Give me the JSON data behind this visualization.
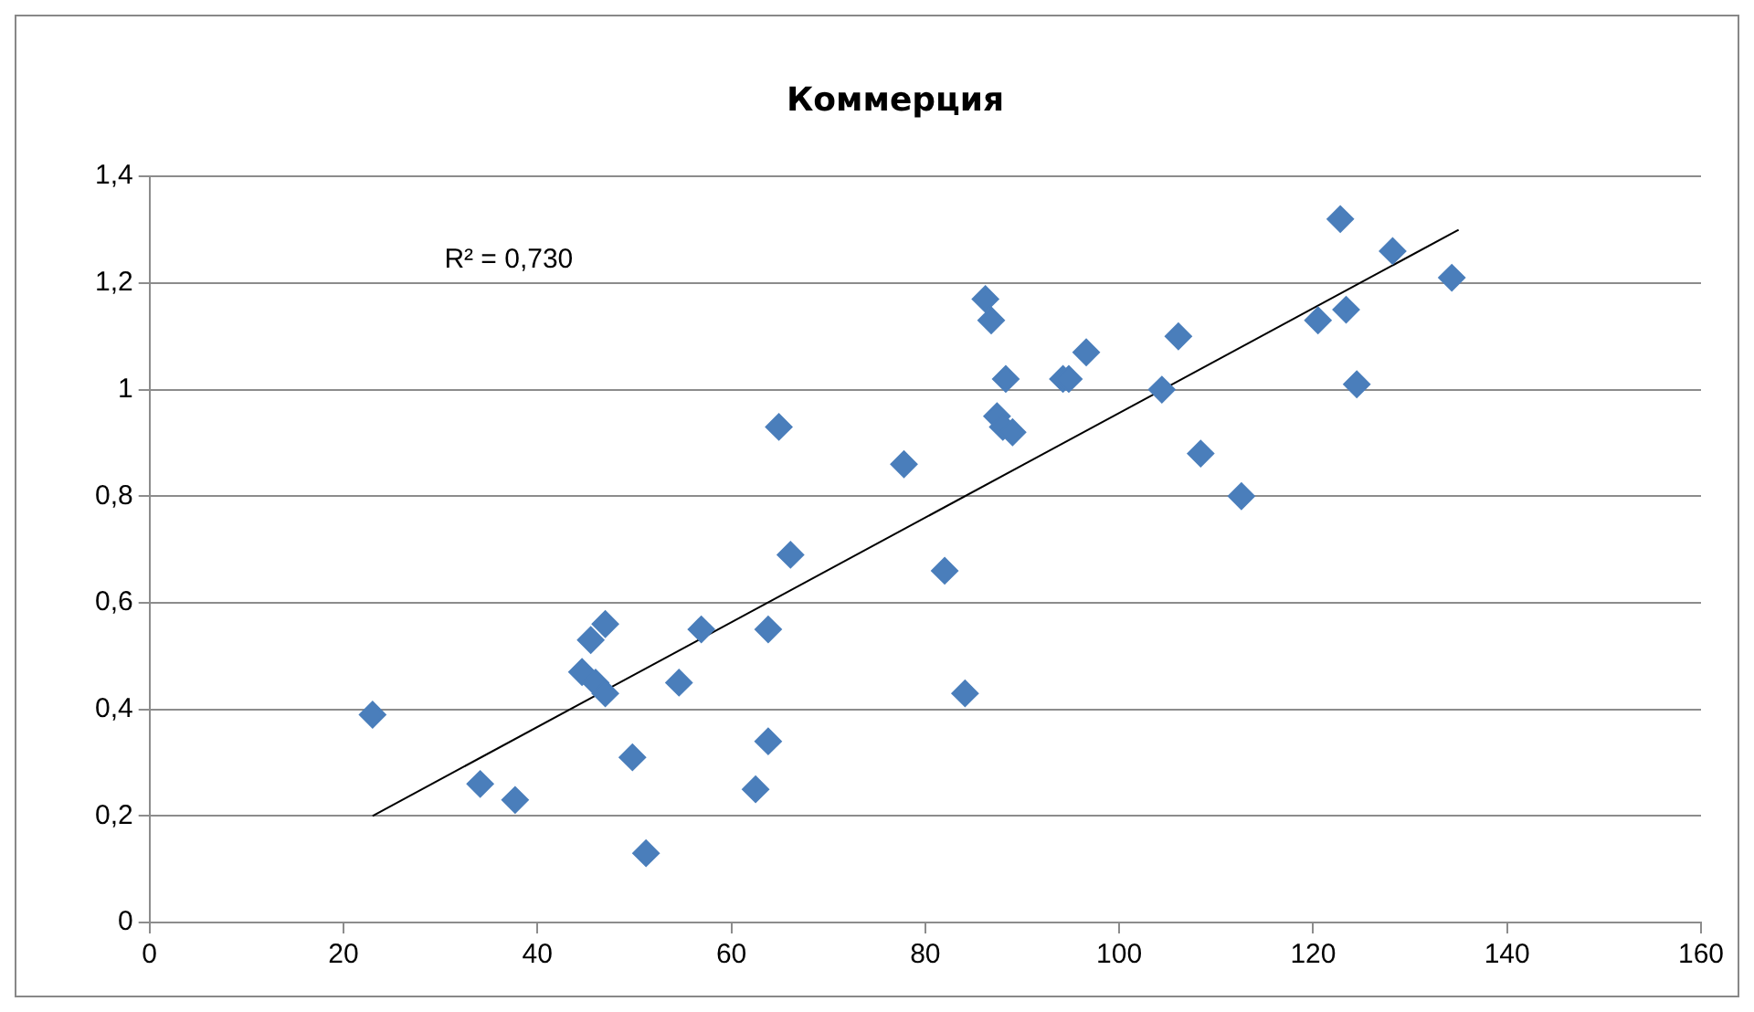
{
  "chart_data": {
    "type": "scatter",
    "title": "Коммерция",
    "grid": "y",
    "legend": false,
    "marker": "diamond",
    "xlim": [
      0,
      160
    ],
    "xticks": [
      0,
      20,
      40,
      60,
      80,
      100,
      120,
      140,
      160
    ],
    "ylim": [
      0,
      1.4
    ],
    "yticks": [
      0,
      {
        "value": 0.2,
        "label": "0,2"
      },
      {
        "value": 0.4,
        "label": "0,4"
      },
      {
        "value": 0.6,
        "label": "0,6"
      },
      {
        "value": 0.8,
        "label": "0,8"
      },
      1,
      {
        "value": 1.2,
        "label": "1,2"
      },
      {
        "value": 1.4,
        "label": "1,4"
      }
    ],
    "annotations": [
      "R² = 0,730"
    ],
    "series": [
      {
        "color": "#4a7ebb",
        "x": [
          23,
          34.1,
          37.7,
          44.6,
          45.5,
          47,
          46,
          47,
          49.8,
          51.2,
          54.6,
          56.9,
          62.5,
          63.8,
          63.8,
          64.9,
          66.1,
          77.8,
          82,
          84.1,
          86.2,
          86.8,
          87.4,
          88,
          88.3,
          89,
          94.2,
          94.8,
          96.6,
          104.4,
          106.1,
          108.4,
          112.6,
          120.5,
          122.8,
          123.4,
          124.5,
          128.2,
          134.3
        ],
        "values": [
          0.39,
          0.26,
          0.23,
          0.47,
          0.53,
          0.56,
          0.45,
          0.43,
          0.31,
          0.13,
          0.45,
          0.55,
          0.25,
          0.34,
          0.55,
          0.93,
          0.69,
          0.86,
          0.66,
          0.43,
          1.17,
          1.13,
          0.95,
          0.93,
          1.02,
          0.92,
          1.02,
          1.02,
          1.07,
          1.0,
          1.1,
          0.88,
          0.8,
          1.13,
          1.32,
          1.15,
          1.01,
          1.26,
          1.21
        ]
      },
      {
        "type": "line",
        "color": "#000000",
        "marker": "none",
        "x": [
          23,
          135
        ],
        "values": [
          0.2,
          1.3
        ]
      }
    ]
  }
}
